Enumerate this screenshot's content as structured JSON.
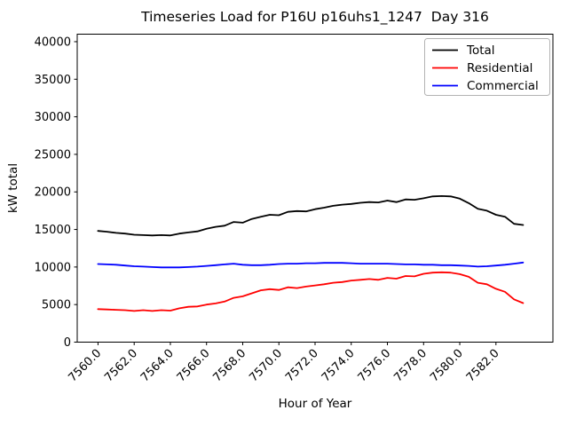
{
  "figure": {
    "background": "#ffffff",
    "accent_colors": {
      "total": "#000000",
      "residential": "#ff0000",
      "commercial": "#0000ff",
      "legend_frame": "#b3b3b3",
      "axes": "#000000"
    }
  },
  "chart_data": {
    "type": "line",
    "title": "Timeseries Load for P16U p16uhs1_1247  Day 316",
    "xlabel": "Hour of Year",
    "ylabel": "kW total",
    "grid": false,
    "legend": {
      "position": "upper right",
      "frame": true
    },
    "xlim": [
      7558.85,
      7585.15
    ],
    "ylim": [
      0,
      41000
    ],
    "xticks": {
      "values": [
        7560,
        7562,
        7564,
        7566,
        7568,
        7570,
        7572,
        7574,
        7576,
        7578,
        7580,
        7582
      ],
      "labels": [
        "7560.0",
        "7562.0",
        "7564.0",
        "7566.0",
        "7568.0",
        "7570.0",
        "7572.0",
        "7574.0",
        "7576.0",
        "7578.0",
        "7580.0",
        "7582.0"
      ],
      "rotation": 45
    },
    "yticks": {
      "values": [
        0,
        5000,
        10000,
        15000,
        20000,
        25000,
        30000,
        35000,
        40000
      ],
      "labels": [
        "0",
        "5000",
        "10000",
        "15000",
        "20000",
        "25000",
        "30000",
        "35000",
        "40000"
      ]
    },
    "x": [
      7560,
      7560.5,
      7561,
      7561.5,
      7562,
      7562.5,
      7563,
      7563.5,
      7564,
      7564.5,
      7565,
      7565.5,
      7566,
      7566.5,
      7567,
      7567.5,
      7568,
      7568.5,
      7569,
      7569.5,
      7570,
      7570.5,
      7571,
      7571.5,
      7572,
      7572.5,
      7573,
      7573.5,
      7574,
      7574.5,
      7575,
      7575.5,
      7576,
      7576.5,
      7577,
      7577.5,
      7578,
      7578.5,
      7579,
      7579.5,
      7580,
      7580.5,
      7581,
      7581.5,
      7582,
      7582.5,
      7583,
      7583.5
    ],
    "series": [
      {
        "name": "Total",
        "color": "#000000",
        "values": [
          14800,
          14700,
          14550,
          14450,
          14300,
          14250,
          14200,
          14250,
          14200,
          14450,
          14600,
          14750,
          15100,
          15350,
          15500,
          16000,
          15900,
          16400,
          16700,
          16950,
          16900,
          17350,
          17450,
          17400,
          17700,
          17900,
          18150,
          18300,
          18400,
          18550,
          18650,
          18600,
          18850,
          18650,
          19000,
          18950,
          19150,
          19400,
          19450,
          19400,
          19100,
          18500,
          17750,
          17500,
          16950,
          16700,
          15750,
          15600
        ]
      },
      {
        "name": "Residential",
        "color": "#ff0000",
        "values": [
          4400,
          4350,
          4300,
          4250,
          4150,
          4250,
          4150,
          4250,
          4200,
          4500,
          4700,
          4750,
          5000,
          5150,
          5400,
          5900,
          6100,
          6500,
          6900,
          7050,
          6950,
          7300,
          7200,
          7400,
          7550,
          7700,
          7900,
          8000,
          8200,
          8300,
          8400,
          8300,
          8550,
          8450,
          8800,
          8750,
          9100,
          9250,
          9300,
          9250,
          9050,
          8700,
          7900,
          7700,
          7100,
          6700,
          5700,
          5200
        ]
      },
      {
        "name": "Commercial",
        "color": "#0000ff",
        "values": [
          10400,
          10350,
          10300,
          10200,
          10100,
          10050,
          10000,
          9950,
          9950,
          9950,
          10000,
          10050,
          10150,
          10250,
          10350,
          10450,
          10300,
          10250,
          10250,
          10300,
          10400,
          10450,
          10450,
          10500,
          10500,
          10550,
          10550,
          10550,
          10500,
          10450,
          10450,
          10450,
          10450,
          10400,
          10350,
          10350,
          10300,
          10300,
          10250,
          10250,
          10200,
          10150,
          10050,
          10100,
          10200,
          10300,
          10450,
          10600
        ]
      }
    ]
  }
}
